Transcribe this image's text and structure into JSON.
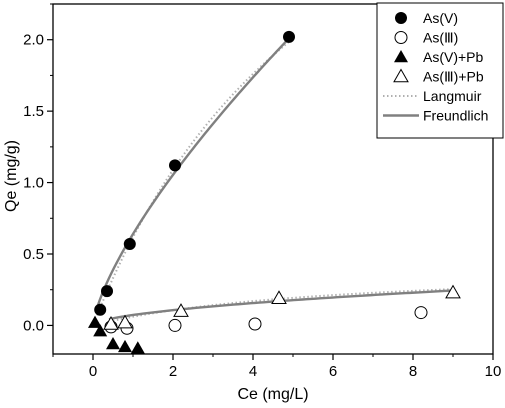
{
  "chart_data": {
    "type": "scatter",
    "title": "",
    "xlabel": "Ce (mg/L)",
    "ylabel": "Qe (mg/g)",
    "xlim": [
      -1,
      10
    ],
    "ylim": [
      -0.2,
      2.25
    ],
    "xticks": [
      0,
      2,
      4,
      6,
      8,
      10
    ],
    "yticks": [
      0.0,
      0.5,
      1.0,
      1.5,
      2.0
    ],
    "xtick_labels": [
      "0",
      "2",
      "4",
      "6",
      "8",
      "10"
    ],
    "ytick_labels": [
      "0.0",
      "0.5",
      "1.0",
      "1.5",
      "2.0"
    ],
    "grid": false,
    "legend_position": "top-right",
    "series": [
      {
        "name": "As(V)",
        "marker": "filled-circle",
        "color": "#000000",
        "x": [
          0.18,
          0.35,
          0.92,
          2.05,
          4.9
        ],
        "y": [
          0.11,
          0.24,
          0.57,
          1.12,
          2.02
        ]
      },
      {
        "name": "As(Ⅲ)",
        "marker": "open-circle",
        "color": "#000000",
        "x": [
          0.45,
          0.85,
          2.05,
          4.05,
          8.2
        ],
        "y": [
          -0.01,
          -0.02,
          0.0,
          0.01,
          0.09
        ]
      },
      {
        "name": "As(V)+Pb",
        "marker": "filled-triangle",
        "color": "#000000",
        "x": [
          0.05,
          0.18,
          0.5,
          0.8,
          1.12
        ],
        "y": [
          0.02,
          -0.04,
          -0.13,
          -0.15,
          -0.16
        ]
      },
      {
        "name": "As(Ⅲ)+Pb",
        "marker": "open-triangle",
        "color": "#000000",
        "x": [
          0.45,
          0.8,
          2.2,
          4.65,
          9.0
        ],
        "y": [
          0.01,
          0.02,
          0.1,
          0.19,
          0.23
        ]
      }
    ],
    "fits": [
      {
        "name": "Langmuir",
        "style": "dotted",
        "color": "#b0b0b0",
        "curves": [
          {
            "fit_of": "As(V)",
            "x_range": [
              0.1,
              4.9
            ],
            "model": "langmuir",
            "qmax": 4.6,
            "kl": 0.155
          },
          {
            "fit_of": "As(Ⅲ)+Pb",
            "x_range": [
              0.4,
              9.0
            ],
            "model": "langmuir",
            "qmax": 0.42,
            "kl": 0.17
          }
        ]
      },
      {
        "name": "Freundlich",
        "style": "solid",
        "color": "#808080",
        "curves": [
          {
            "fit_of": "As(V)",
            "x_range": [
              0.1,
              4.9
            ],
            "model": "freundlich",
            "kf": 0.64,
            "n_inv": 0.72
          },
          {
            "fit_of": "As(Ⅲ)+Pb",
            "x_range": [
              0.4,
              9.0
            ],
            "model": "freundlich",
            "kf": 0.073,
            "n_inv": 0.55
          }
        ]
      }
    ],
    "legend": [
      {
        "label": "As(V)",
        "symbol": "filled-circle"
      },
      {
        "label": "As(Ⅲ)",
        "symbol": "open-circle"
      },
      {
        "label": "As(V)+Pb",
        "symbol": "filled-triangle"
      },
      {
        "label": "As(Ⅲ)+Pb",
        "symbol": "open-triangle"
      },
      {
        "label": "Langmuir",
        "symbol": "dotted-line"
      },
      {
        "label": "Freundlich",
        "symbol": "solid-line"
      }
    ]
  }
}
